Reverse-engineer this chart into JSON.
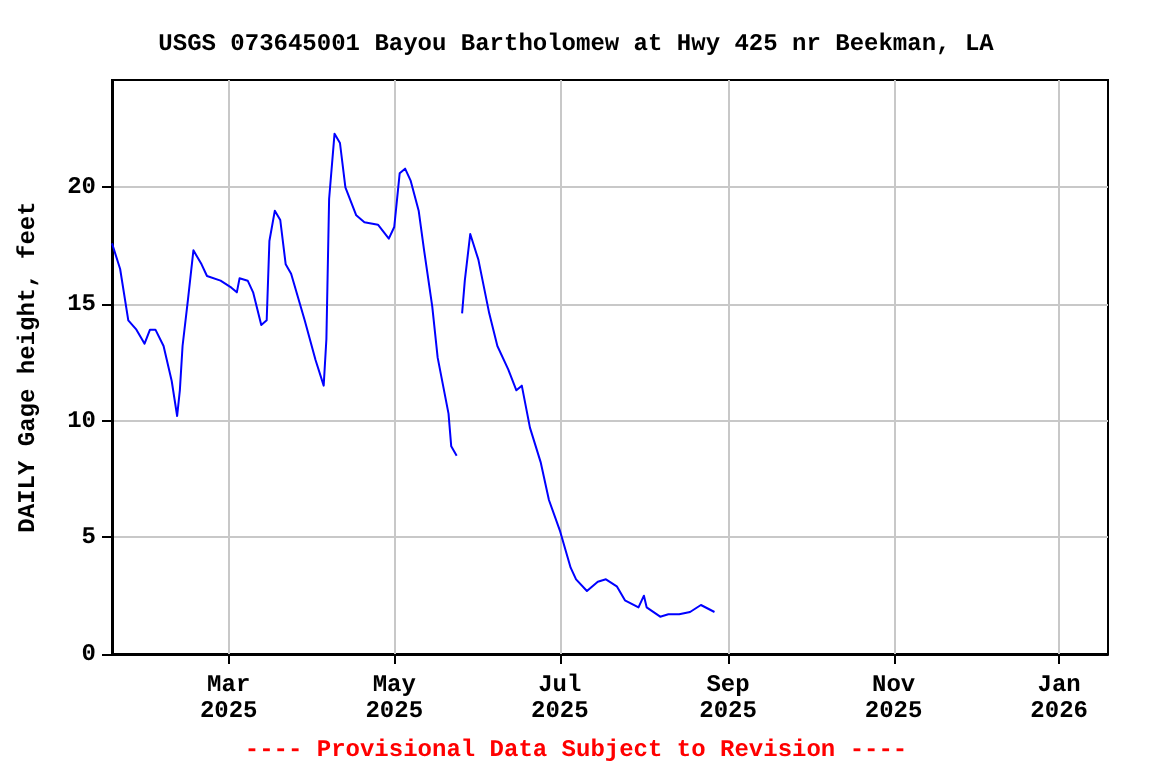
{
  "chart_data": {
    "type": "line",
    "title": "USGS 073645001 Bayou Bartholomew at Hwy 425 nr Beekman, LA",
    "ylabel": "DAILY Gage height, feet",
    "annotations": [
      "---- Provisional Data Subject to Revision ----"
    ],
    "x": [
      "2025-01-17",
      "2025-01-20",
      "2025-01-23",
      "2025-01-26",
      "2025-01-29",
      "2025-01-31",
      "2025-02-02",
      "2025-02-05",
      "2025-02-08",
      "2025-02-10",
      "2025-02-11",
      "2025-02-12",
      "2025-02-14",
      "2025-02-16",
      "2025-02-19",
      "2025-02-21",
      "2025-02-26",
      "2025-03-02",
      "2025-03-04",
      "2025-03-05",
      "2025-03-08",
      "2025-03-10",
      "2025-03-13",
      "2025-03-15",
      "2025-03-16",
      "2025-03-18",
      "2025-03-20",
      "2025-03-22",
      "2025-03-24",
      "2025-03-29",
      "2025-04-02",
      "2025-04-05",
      "2025-04-06",
      "2025-04-07",
      "2025-04-09",
      "2025-04-11",
      "2025-04-13",
      "2025-04-17",
      "2025-04-20",
      "2025-04-25",
      "2025-04-29",
      "2025-05-01",
      "2025-05-03",
      "2025-05-05",
      "2025-05-07",
      "2025-05-10",
      "2025-05-12",
      "2025-05-15",
      "2025-05-17",
      "2025-05-21",
      "2025-05-22",
      "2025-05-24",
      "2025-05-25",
      "2025-05-26",
      "2025-05-27",
      "2025-05-29",
      "2025-06-01",
      "2025-06-05",
      "2025-06-08",
      "2025-06-12",
      "2025-06-15",
      "2025-06-17",
      "2025-06-20",
      "2025-06-24",
      "2025-06-27",
      "2025-07-01",
      "2025-07-05",
      "2025-07-07",
      "2025-07-11",
      "2025-07-15",
      "2025-07-18",
      "2025-07-22",
      "2025-07-25",
      "2025-07-30",
      "2025-08-01",
      "2025-08-02",
      "2025-08-07",
      "2025-08-10",
      "2025-08-14",
      "2025-08-18",
      "2025-08-22",
      "2025-08-27"
    ],
    "series": [
      {
        "color": "#0000ff",
        "values": [
          17.6,
          16.5,
          14.3,
          13.9,
          13.3,
          13.9,
          13.9,
          13.2,
          11.7,
          10.2,
          11.3,
          13.2,
          15.2,
          17.3,
          16.7,
          16.2,
          16.0,
          15.7,
          15.5,
          16.1,
          16.0,
          15.5,
          14.1,
          14.3,
          17.7,
          19.0,
          18.6,
          16.7,
          16.3,
          14.3,
          12.6,
          11.5,
          13.5,
          19.5,
          22.3,
          21.9,
          20.0,
          18.8,
          18.5,
          18.4,
          17.8,
          18.3,
          20.6,
          20.8,
          20.3,
          19.0,
          17.3,
          14.9,
          12.7,
          10.3,
          8.9,
          8.5,
          null,
          14.6,
          16.0,
          18.0,
          16.9,
          14.6,
          13.2,
          12.2,
          11.3,
          11.5,
          9.7,
          8.2,
          6.6,
          5.3,
          3.7,
          3.2,
          2.7,
          3.1,
          3.2,
          2.9,
          2.3,
          2.0,
          2.5,
          2.0,
          1.6,
          1.7,
          1.7,
          1.8,
          2.1,
          1.8
        ]
      }
    ],
    "xlim": [
      "2025-01-17",
      "2026-01-19"
    ],
    "xticks": [
      {
        "value": "2025-03-01",
        "label": "Mar\n2025"
      },
      {
        "value": "2025-05-01",
        "label": "May\n2025"
      },
      {
        "value": "2025-07-01",
        "label": "Jul\n2025"
      },
      {
        "value": "2025-09-01",
        "label": "Sep\n2025"
      },
      {
        "value": "2025-11-01",
        "label": "Nov\n2025"
      },
      {
        "value": "2026-01-01",
        "label": "Jan\n2026"
      }
    ],
    "ylim": [
      0,
      24.6
    ],
    "yticks": [
      0,
      5,
      10,
      15,
      20
    ],
    "grid": true,
    "marker": "none",
    "line_style": "solid"
  }
}
